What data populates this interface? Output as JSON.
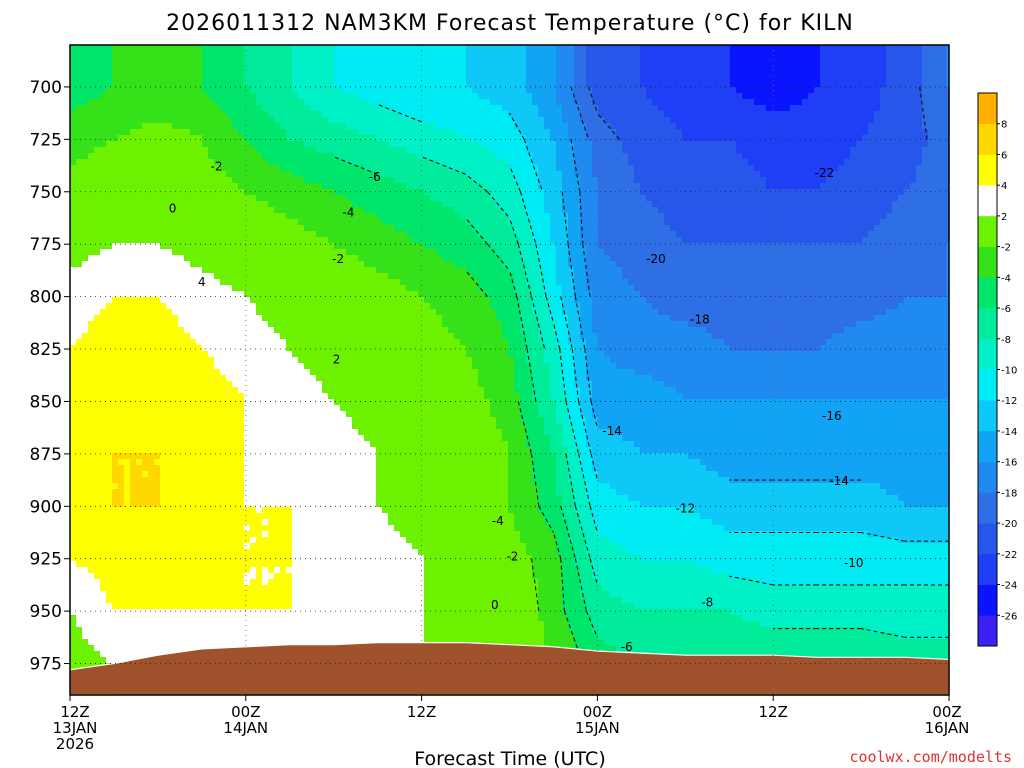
{
  "chart_data": {
    "type": "heatmap",
    "title": "2026011312 NAM3KM Forecast Temperature (°C) for KILN",
    "xlabel": "Forecast Time (UTC)",
    "ylabel": "",
    "credit": "coolwx.com/modelts",
    "y_ticks": [
      "700",
      "725",
      "750",
      "775",
      "800",
      "825",
      "850",
      "875",
      "900",
      "925",
      "950",
      "975"
    ],
    "y_levels": [
      700,
      725,
      750,
      775,
      800,
      825,
      850,
      875,
      900,
      925,
      950,
      975
    ],
    "ylim": [
      680,
      990
    ],
    "xlim": [
      0,
      60
    ],
    "x_ticks": [
      {
        "hour": 0,
        "lines": [
          "12Z",
          "13JAN",
          "2026"
        ]
      },
      {
        "hour": 12,
        "lines": [
          "00Z",
          "14JAN"
        ]
      },
      {
        "hour": 24,
        "lines": [
          "12Z"
        ]
      },
      {
        "hour": 36,
        "lines": [
          "00Z",
          "15JAN"
        ]
      },
      {
        "hour": 48,
        "lines": [
          "12Z"
        ]
      },
      {
        "hour": 60,
        "lines": [
          "00Z",
          "16JAN"
        ]
      }
    ],
    "grid": true,
    "colorbar": {
      "levels": [
        -28,
        -26,
        -24,
        -22,
        -20,
        -18,
        -16,
        -14,
        -12,
        -10,
        -8,
        -6,
        -4,
        -2,
        2,
        4,
        6,
        8,
        10
      ],
      "colors": [
        "#3b21f2",
        "#0a14ff",
        "#1e3ff5",
        "#2657ea",
        "#2f6fe6",
        "#1f8af0",
        "#11a4f5",
        "#0ec8f7",
        "#00ecf5",
        "#00f0c8",
        "#00ec9a",
        "#00e66a",
        "#35e21a",
        "#6cf200",
        "#ffffff",
        "#ffff00",
        "#ffd800",
        "#ffb000"
      ],
      "labels": [
        "-26",
        "-24",
        "-22",
        "-20",
        "-18",
        "-16",
        "-14",
        "-12",
        "-10",
        "-8",
        "-6",
        "-4",
        "-2",
        "2",
        "4",
        "6",
        "8"
      ]
    },
    "hours": [
      0,
      3,
      6,
      9,
      12,
      15,
      18,
      21,
      24,
      27,
      30,
      33,
      36,
      39,
      42,
      45,
      48,
      51,
      54,
      57,
      60
    ],
    "temperature": [
      [
        -5,
        -4,
        -4,
        -4,
        -6,
        -8,
        -10,
        -11,
        -12,
        -12,
        -13,
        -16,
        -21,
        -22,
        -23,
        -24,
        -25,
        -24,
        -23,
        -21,
        -18
      ],
      [
        -3,
        -2,
        -1,
        -2,
        -4,
        -6,
        -7,
        -8,
        -9,
        -10,
        -11,
        -14,
        -19,
        -21,
        -22,
        -22,
        -23,
        -23,
        -22,
        -21,
        -19
      ],
      [
        -1,
        0,
        0,
        -1,
        -2,
        -3,
        -4,
        -5,
        -6,
        -7,
        -9,
        -13,
        -18,
        -20,
        -21,
        -21,
        -22,
        -22,
        -21,
        -20,
        -19
      ],
      [
        1,
        2,
        2,
        1,
        0,
        -1,
        -2,
        -3,
        -4,
        -5,
        -7,
        -12,
        -18,
        -19,
        -20,
        -20,
        -20,
        -20,
        -20,
        -19,
        -18
      ],
      [
        3,
        4,
        4,
        3,
        2,
        1,
        0,
        -1,
        -2,
        -3,
        -5,
        -11,
        -17,
        -18,
        -19,
        -19,
        -19,
        -19,
        -19,
        -18,
        -18
      ],
      [
        4,
        5,
        5,
        4,
        3,
        2,
        1,
        0,
        -1,
        -2,
        -4,
        -9,
        -16,
        -17,
        -17,
        -18,
        -18,
        -18,
        -17,
        -17,
        -17
      ],
      [
        4,
        5,
        6,
        5,
        4,
        3,
        2,
        1,
        0,
        -1,
        -3,
        -8,
        -15,
        -15,
        -16,
        -16,
        -16,
        -16,
        -16,
        -16,
        -16
      ],
      [
        5,
        6,
        6,
        5,
        4,
        3,
        3,
        2,
        1,
        0,
        -2,
        -6,
        -13,
        -14,
        -14,
        -15,
        -15,
        -15,
        -15,
        -15,
        -15
      ],
      [
        5,
        6,
        6,
        5,
        4,
        4,
        3,
        2,
        1,
        0,
        -2,
        -5,
        -11,
        -12,
        -12,
        -13,
        -13,
        -13,
        -13,
        -14,
        -14
      ],
      [
        4,
        5,
        5,
        5,
        4,
        4,
        3,
        3,
        2,
        1,
        -1,
        -3,
        -9,
        -10,
        -10,
        -11,
        -11,
        -11,
        -11,
        -11,
        -11
      ],
      [
        2,
        4,
        4,
        4,
        4,
        4,
        3,
        3,
        2,
        1,
        0,
        -3,
        -7,
        -8,
        -8,
        -8,
        -9,
        -9,
        -9,
        -9,
        -9
      ],
      [
        1,
        2,
        3,
        3,
        3,
        3,
        3,
        3,
        2,
        1,
        0,
        -2,
        -5,
        -6,
        -6,
        -6,
        -6,
        -6,
        -6,
        -7,
        -7
      ]
    ],
    "terrain_pressure": [
      978,
      975,
      971,
      968,
      967,
      966,
      966,
      965,
      965,
      965,
      966,
      967,
      969,
      970,
      971,
      971,
      971,
      972,
      972,
      972,
      973
    ],
    "contour_labels": [
      {
        "text": "-2",
        "hour": 10.0,
        "p": 738
      },
      {
        "text": "0",
        "hour": 7.0,
        "p": 758
      },
      {
        "text": "4",
        "hour": 9.0,
        "p": 793
      },
      {
        "text": "2",
        "hour": 18.2,
        "p": 830
      },
      {
        "text": "-6",
        "hour": 20.8,
        "p": 743
      },
      {
        "text": "-4",
        "hour": 19.0,
        "p": 760
      },
      {
        "text": "-2",
        "hour": 18.3,
        "p": 782
      },
      {
        "text": "-4",
        "hour": 29.2,
        "p": 907
      },
      {
        "text": "-2",
        "hour": 30.2,
        "p": 924
      },
      {
        "text": "0",
        "hour": 29.0,
        "p": 947
      },
      {
        "text": "-6",
        "hour": 38.0,
        "p": 967
      },
      {
        "text": "-8",
        "hour": 43.5,
        "p": 946
      },
      {
        "text": "-10",
        "hour": 53.5,
        "p": 927
      },
      {
        "text": "-12",
        "hour": 42.0,
        "p": 901
      },
      {
        "text": "-14",
        "hour": 52.5,
        "p": 888
      },
      {
        "text": "-14",
        "hour": 37.0,
        "p": 864
      },
      {
        "text": "-16",
        "hour": 52.0,
        "p": 857
      },
      {
        "text": "-18",
        "hour": 43.0,
        "p": 811
      },
      {
        "text": "-20",
        "hour": 40.0,
        "p": 782
      },
      {
        "text": "-22",
        "hour": 51.5,
        "p": 741
      }
    ]
  }
}
